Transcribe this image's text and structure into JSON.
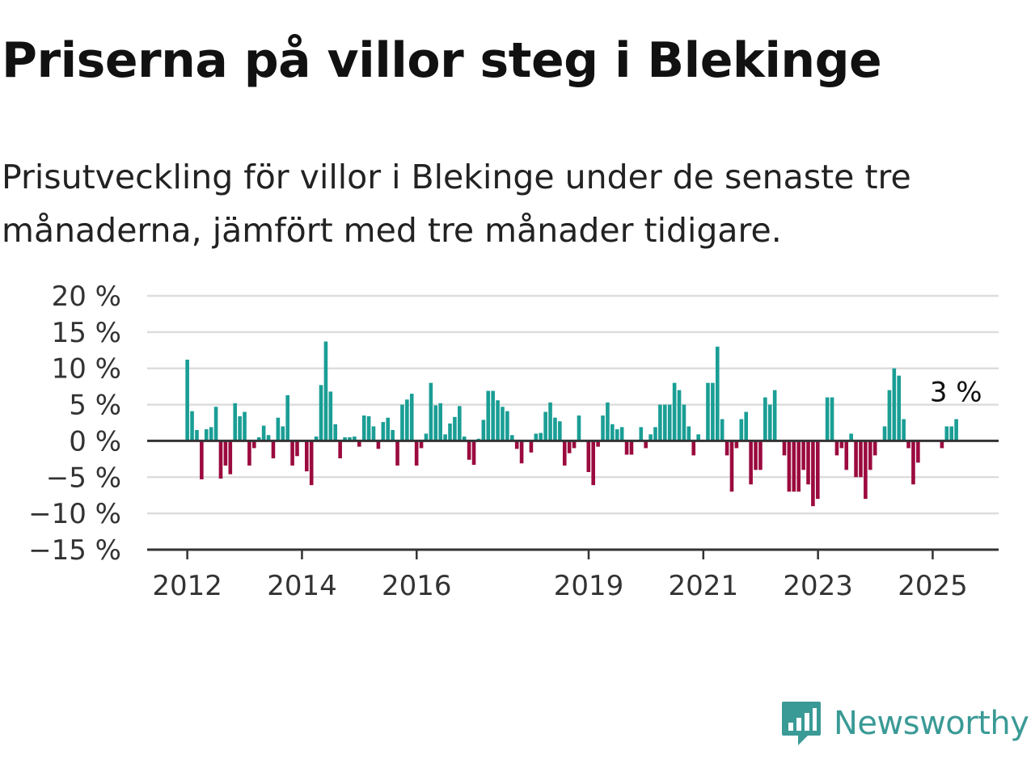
{
  "header": {
    "title": "Priserna på villor steg i Blekinge",
    "subtitle": "Prisutveckling för villor i Blekinge under de senaste tre månaderna, jämfört med tre månader tidigare."
  },
  "brand": {
    "name": "Newsworthy"
  },
  "colors": {
    "positive": "#1a9e95",
    "negative": "#9b0a3e",
    "grid": "#dddddd",
    "axis": "#333333"
  },
  "chart_data": {
    "type": "bar",
    "title": "Priserna på villor steg i Blekinge",
    "subtitle": "Prisutveckling för villor i Blekinge under de senaste tre månaderna, jämfört med tre månader tidigare.",
    "xlabel": "",
    "ylabel": "",
    "ylim": [
      -15,
      20
    ],
    "xlim": [
      2011.3,
      2026.15
    ],
    "y_ticks": [
      20,
      15,
      10,
      5,
      0,
      -5,
      -10,
      -15
    ],
    "y_tick_labels": [
      "20 %",
      "15 %",
      "10 %",
      "5 %",
      "0 %",
      "−5 %",
      "−10 %",
      "−15 %"
    ],
    "x_ticks": [
      2012,
      2014,
      2016,
      2019,
      2021,
      2023,
      2025
    ],
    "x_tick_labels": [
      "2012",
      "2014",
      "2016",
      "2019",
      "2021",
      "2023",
      "2025"
    ],
    "grid": true,
    "annotation": "3 %",
    "series": [
      {
        "x_start": 2012.0,
        "x_step": 0.0833,
        "values": [
          11.2,
          4.1,
          1.5,
          -5.3,
          1.6,
          1.9,
          4.7,
          -5.2,
          -3.4,
          -4.6,
          5.2,
          3.4,
          4.0,
          -3.4,
          -1.0,
          0.5,
          2.1,
          0.8,
          -2.4,
          3.2,
          2.0,
          6.3,
          -3.4,
          -2.1,
          0,
          -4.2,
          -6.1,
          0.6,
          7.7,
          13.7,
          6.8,
          2.3,
          -2.4,
          0.5,
          0.5,
          0.6,
          -0.8,
          3.5,
          3.4,
          2.0,
          -1.1,
          2.6,
          3.2,
          1.5,
          -3.4,
          5.0,
          5.7,
          6.5,
          -3.4,
          -1.0,
          1.0,
          8.0,
          4.9,
          5.2,
          0.9,
          2.4,
          3.3,
          4.8,
          0.6,
          -2.6,
          -3.3,
          0.3,
          2.9,
          6.9,
          6.9,
          5.6,
          4.7,
          4.1,
          0.8,
          -1.1,
          -3.1,
          0,
          -1.6,
          1.0,
          1.1,
          4.0,
          5.3,
          3.2,
          2.7,
          -3.4,
          -1.7,
          -1.0,
          3.5,
          0,
          -4.3,
          -6.1,
          -0.8,
          3.5,
          5.3,
          2.3,
          1.6,
          1.9,
          -1.9,
          -1.9,
          0,
          1.9,
          -1.0,
          0.9,
          1.9,
          5.0,
          5.0,
          5.0,
          8.0,
          7.0,
          5.0,
          2.0,
          -2.0,
          0.9,
          0,
          8.0,
          8.0,
          13.0,
          3.0,
          -2.0,
          -7.0,
          -1.0,
          3.0,
          4.0,
          -6.0,
          -4.0,
          -4.0,
          6.0,
          5.0,
          7.0,
          0,
          -2.0,
          -7.0,
          -7.0,
          -7.0,
          -4.0,
          -6.0,
          -9.0,
          -8.0,
          0,
          6.0,
          6.0,
          -2.0,
          -1.0,
          -4.0,
          1.0,
          -5.0,
          -5.0,
          -8.0,
          -4.0,
          -2.0,
          0,
          2.0,
          7.0,
          10.0,
          9.0,
          3.0,
          -1.0,
          -6.0,
          -3.0,
          0,
          0,
          0,
          0,
          -1.0,
          2.0,
          2.0,
          3.0
        ]
      }
    ]
  }
}
